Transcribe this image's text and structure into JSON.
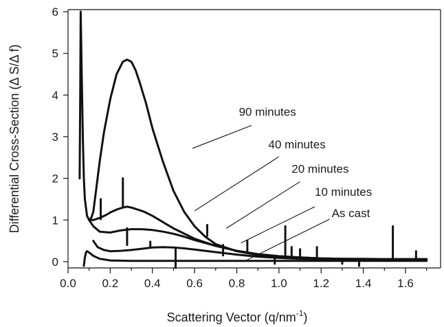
{
  "chart_data": {
    "type": "line",
    "xlabel": "Scattering Vector (q/nm",
    "xlabel_sup": "-1",
    "xlabel_end": ")",
    "ylabel": "Differential Cross-Section (Δ S/Δ f)",
    "xlim": [
      0.0,
      1.7
    ],
    "ylim": [
      -0.15,
      6.05
    ],
    "x_ticks": [
      0.0,
      0.2,
      0.4,
      0.6,
      0.8,
      1.0,
      1.2,
      1.4,
      1.6
    ],
    "x_tick_labels": [
      "0.0",
      "0.2",
      "0.4",
      "0.6",
      "0.8",
      "1.0",
      "1.2",
      "1.4",
      "1.6"
    ],
    "y_ticks": [
      0,
      1,
      2,
      3,
      4,
      5,
      6
    ],
    "y_tick_labels": [
      "0",
      "1",
      "2",
      "3",
      "4",
      "5",
      "6"
    ],
    "grid": false,
    "legend": "none",
    "series": [
      {
        "name": "90 minutes",
        "x": [
          0.055,
          0.058,
          0.06,
          0.065,
          0.07,
          0.075,
          0.08,
          0.09,
          0.1,
          0.11,
          0.12,
          0.13,
          0.15,
          0.17,
          0.2,
          0.23,
          0.26,
          0.28,
          0.3,
          0.32,
          0.34,
          0.37,
          0.4,
          0.45,
          0.5,
          0.55,
          0.6,
          0.65,
          0.7,
          0.8,
          0.9,
          1.0,
          1.1,
          1.2,
          1.3,
          1.4,
          1.5,
          1.6,
          1.7
        ],
        "y": [
          2.0,
          4.2,
          6.0,
          4.5,
          3.0,
          2.0,
          1.5,
          1.1,
          1.0,
          1.05,
          1.2,
          1.6,
          2.4,
          3.1,
          3.9,
          4.5,
          4.8,
          4.85,
          4.8,
          4.6,
          4.3,
          3.8,
          3.2,
          2.4,
          1.7,
          1.2,
          0.85,
          0.6,
          0.42,
          0.25,
          0.16,
          0.11,
          0.08,
          0.07,
          0.06,
          0.06,
          0.05,
          0.05,
          0.05
        ]
      },
      {
        "name": "40 minutes",
        "x": [
          0.1,
          0.12,
          0.15,
          0.18,
          0.2,
          0.23,
          0.26,
          0.28,
          0.3,
          0.33,
          0.36,
          0.4,
          0.45,
          0.5,
          0.6,
          0.7,
          0.8,
          0.9,
          1.0,
          1.1,
          1.2,
          1.3,
          1.4,
          1.5,
          1.6,
          1.7
        ],
        "y": [
          1.0,
          1.0,
          1.05,
          1.12,
          1.18,
          1.25,
          1.3,
          1.32,
          1.3,
          1.25,
          1.2,
          1.1,
          0.95,
          0.8,
          0.55,
          0.38,
          0.26,
          0.18,
          0.13,
          0.1,
          0.08,
          0.07,
          0.07,
          0.06,
          0.06,
          0.06
        ]
      },
      {
        "name": "20 minutes",
        "x": [
          0.1,
          0.12,
          0.15,
          0.2,
          0.25,
          0.3,
          0.35,
          0.4,
          0.45,
          0.5,
          0.55,
          0.6,
          0.7,
          0.8,
          0.9,
          1.0,
          1.1,
          1.2,
          1.3,
          1.4,
          1.5,
          1.6,
          1.7
        ],
        "y": [
          1.0,
          0.85,
          0.72,
          0.7,
          0.75,
          0.78,
          0.78,
          0.76,
          0.72,
          0.67,
          0.6,
          0.52,
          0.38,
          0.26,
          0.18,
          0.13,
          0.1,
          0.08,
          0.07,
          0.06,
          0.06,
          0.06,
          0.06
        ]
      },
      {
        "name": "10 minutes",
        "x": [
          0.12,
          0.14,
          0.17,
          0.2,
          0.25,
          0.3,
          0.35,
          0.4,
          0.45,
          0.5,
          0.55,
          0.6,
          0.7,
          0.8,
          0.9,
          1.0,
          1.1,
          1.2,
          1.3,
          1.4,
          1.5,
          1.6,
          1.7
        ],
        "y": [
          0.5,
          0.35,
          0.28,
          0.25,
          0.26,
          0.28,
          0.31,
          0.34,
          0.35,
          0.34,
          0.32,
          0.29,
          0.23,
          0.17,
          0.12,
          0.09,
          0.07,
          0.06,
          0.05,
          0.05,
          0.05,
          0.05,
          0.05
        ]
      },
      {
        "name": "As cast",
        "x": [
          0.075,
          0.08,
          0.085,
          0.09,
          0.1,
          0.12,
          0.15,
          0.2,
          0.3,
          0.4,
          0.5,
          0.6,
          0.7,
          0.8,
          0.9,
          1.0,
          1.1,
          1.2,
          1.3,
          1.4,
          1.5,
          1.6,
          1.7
        ],
        "y": [
          -0.1,
          0.1,
          0.22,
          0.25,
          0.22,
          0.14,
          0.07,
          0.03,
          0.02,
          0.02,
          0.02,
          0.02,
          0.02,
          0.02,
          0.02,
          0.02,
          0.02,
          0.02,
          0.02,
          0.02,
          0.02,
          0.02,
          0.02
        ]
      }
    ],
    "spikes": [
      {
        "x": 0.155,
        "y0": 1.02,
        "y1": 1.5
      },
      {
        "x": 0.26,
        "y0": 1.3,
        "y1": 2.0
      },
      {
        "x": 0.28,
        "y0": 0.8,
        "y1": 0.4
      },
      {
        "x": 0.39,
        "y0": 0.34,
        "y1": 0.48
      },
      {
        "x": 0.51,
        "y0": 0.3,
        "y1": -0.15
      },
      {
        "x": 0.66,
        "y0": 0.62,
        "y1": 0.88
      },
      {
        "x": 0.735,
        "y0": 0.4,
        "y1": 0.15
      },
      {
        "x": 0.85,
        "y0": 0.21,
        "y1": 0.5
      },
      {
        "x": 0.98,
        "y0": 0.1,
        "y1": -0.05
      },
      {
        "x": 1.03,
        "y0": 0.14,
        "y1": 0.85
      },
      {
        "x": 1.06,
        "y0": 0.1,
        "y1": 0.35
      },
      {
        "x": 1.1,
        "y0": 0.09,
        "y1": 0.3
      },
      {
        "x": 1.18,
        "y0": 0.08,
        "y1": 0.35
      },
      {
        "x": 1.3,
        "y0": 0.07,
        "y1": -0.05
      },
      {
        "x": 1.38,
        "y0": 0.06,
        "y1": -0.1
      },
      {
        "x": 1.54,
        "y0": 0.06,
        "y1": 0.85
      },
      {
        "x": 1.65,
        "y0": 0.06,
        "y1": 0.25
      }
    ],
    "annotations": [
      {
        "label": "90 minutes",
        "text_x": 0.81,
        "text_y": 3.5,
        "line": [
          0.87,
          3.27,
          0.59,
          2.72
        ]
      },
      {
        "label": "40 minutes",
        "text_x": 0.95,
        "text_y": 2.72,
        "line": [
          1.0,
          2.52,
          0.6,
          1.22
        ]
      },
      {
        "label": "20 minutes",
        "text_x": 1.06,
        "text_y": 2.13,
        "line": [
          1.1,
          1.92,
          0.75,
          0.8
        ]
      },
      {
        "label": "10 minutes",
        "text_x": 1.17,
        "text_y": 1.58,
        "line": [
          1.17,
          1.32,
          0.82,
          0.45
        ]
      },
      {
        "label": "As cast",
        "text_x": 1.25,
        "text_y": 1.07,
        "line": [
          1.24,
          1.02,
          0.84,
          0.02
        ]
      }
    ]
  }
}
